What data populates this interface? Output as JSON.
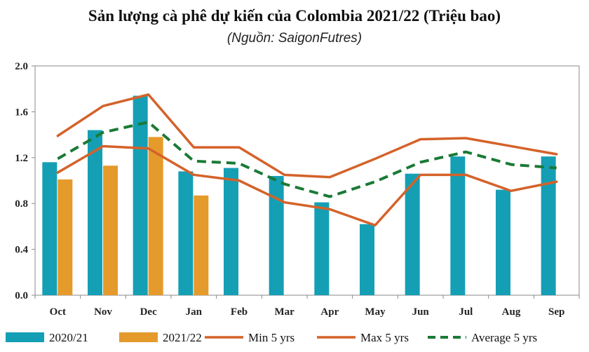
{
  "chart_data": {
    "type": "bar",
    "title": "Sản lượng cà phê dự kiến của Colombia 2021/22 (Triệu bao)",
    "subtitle": "(Nguồn: SaigonFutres)",
    "categories": [
      "Oct",
      "Nov",
      "Dec",
      "Jan",
      "Feb",
      "Mar",
      "Apr",
      "May",
      "Jun",
      "Jul",
      "Aug",
      "Sep"
    ],
    "ylim": [
      0,
      2.0
    ],
    "yticks": [
      "0.0",
      "0.4",
      "0.8",
      "1.2",
      "1.6",
      "2.0"
    ],
    "grid": false,
    "legend_position": "bottom",
    "bar_series": [
      {
        "name": "2020/21",
        "color": "#159fb5",
        "values": [
          1.16,
          1.44,
          1.74,
          1.08,
          1.11,
          1.04,
          0.81,
          0.62,
          1.06,
          1.21,
          0.92,
          1.21
        ]
      },
      {
        "name": "2021/22",
        "color": "#e59a2c",
        "values": [
          1.01,
          1.13,
          1.38,
          0.87,
          null,
          null,
          null,
          null,
          null,
          null,
          null,
          null
        ]
      }
    ],
    "line_series": [
      {
        "name": "Min 5 yrs",
        "color": "#d4622a",
        "dash": false,
        "values": [
          1.07,
          1.3,
          1.28,
          1.05,
          1.0,
          0.81,
          0.75,
          0.61,
          1.05,
          1.05,
          0.91,
          0.99
        ]
      },
      {
        "name": "Max 5 yrs",
        "color": "#d4622a",
        "dash": false,
        "values": [
          1.39,
          1.65,
          1.75,
          1.29,
          1.29,
          1.05,
          1.03,
          1.19,
          1.36,
          1.37,
          1.3,
          1.23
        ]
      },
      {
        "name": "Average 5 yrs",
        "color": "#1a7a35",
        "dash": true,
        "values": [
          1.19,
          1.42,
          1.51,
          1.17,
          1.15,
          0.97,
          0.86,
          0.99,
          1.16,
          1.25,
          1.14,
          1.11
        ]
      }
    ]
  }
}
